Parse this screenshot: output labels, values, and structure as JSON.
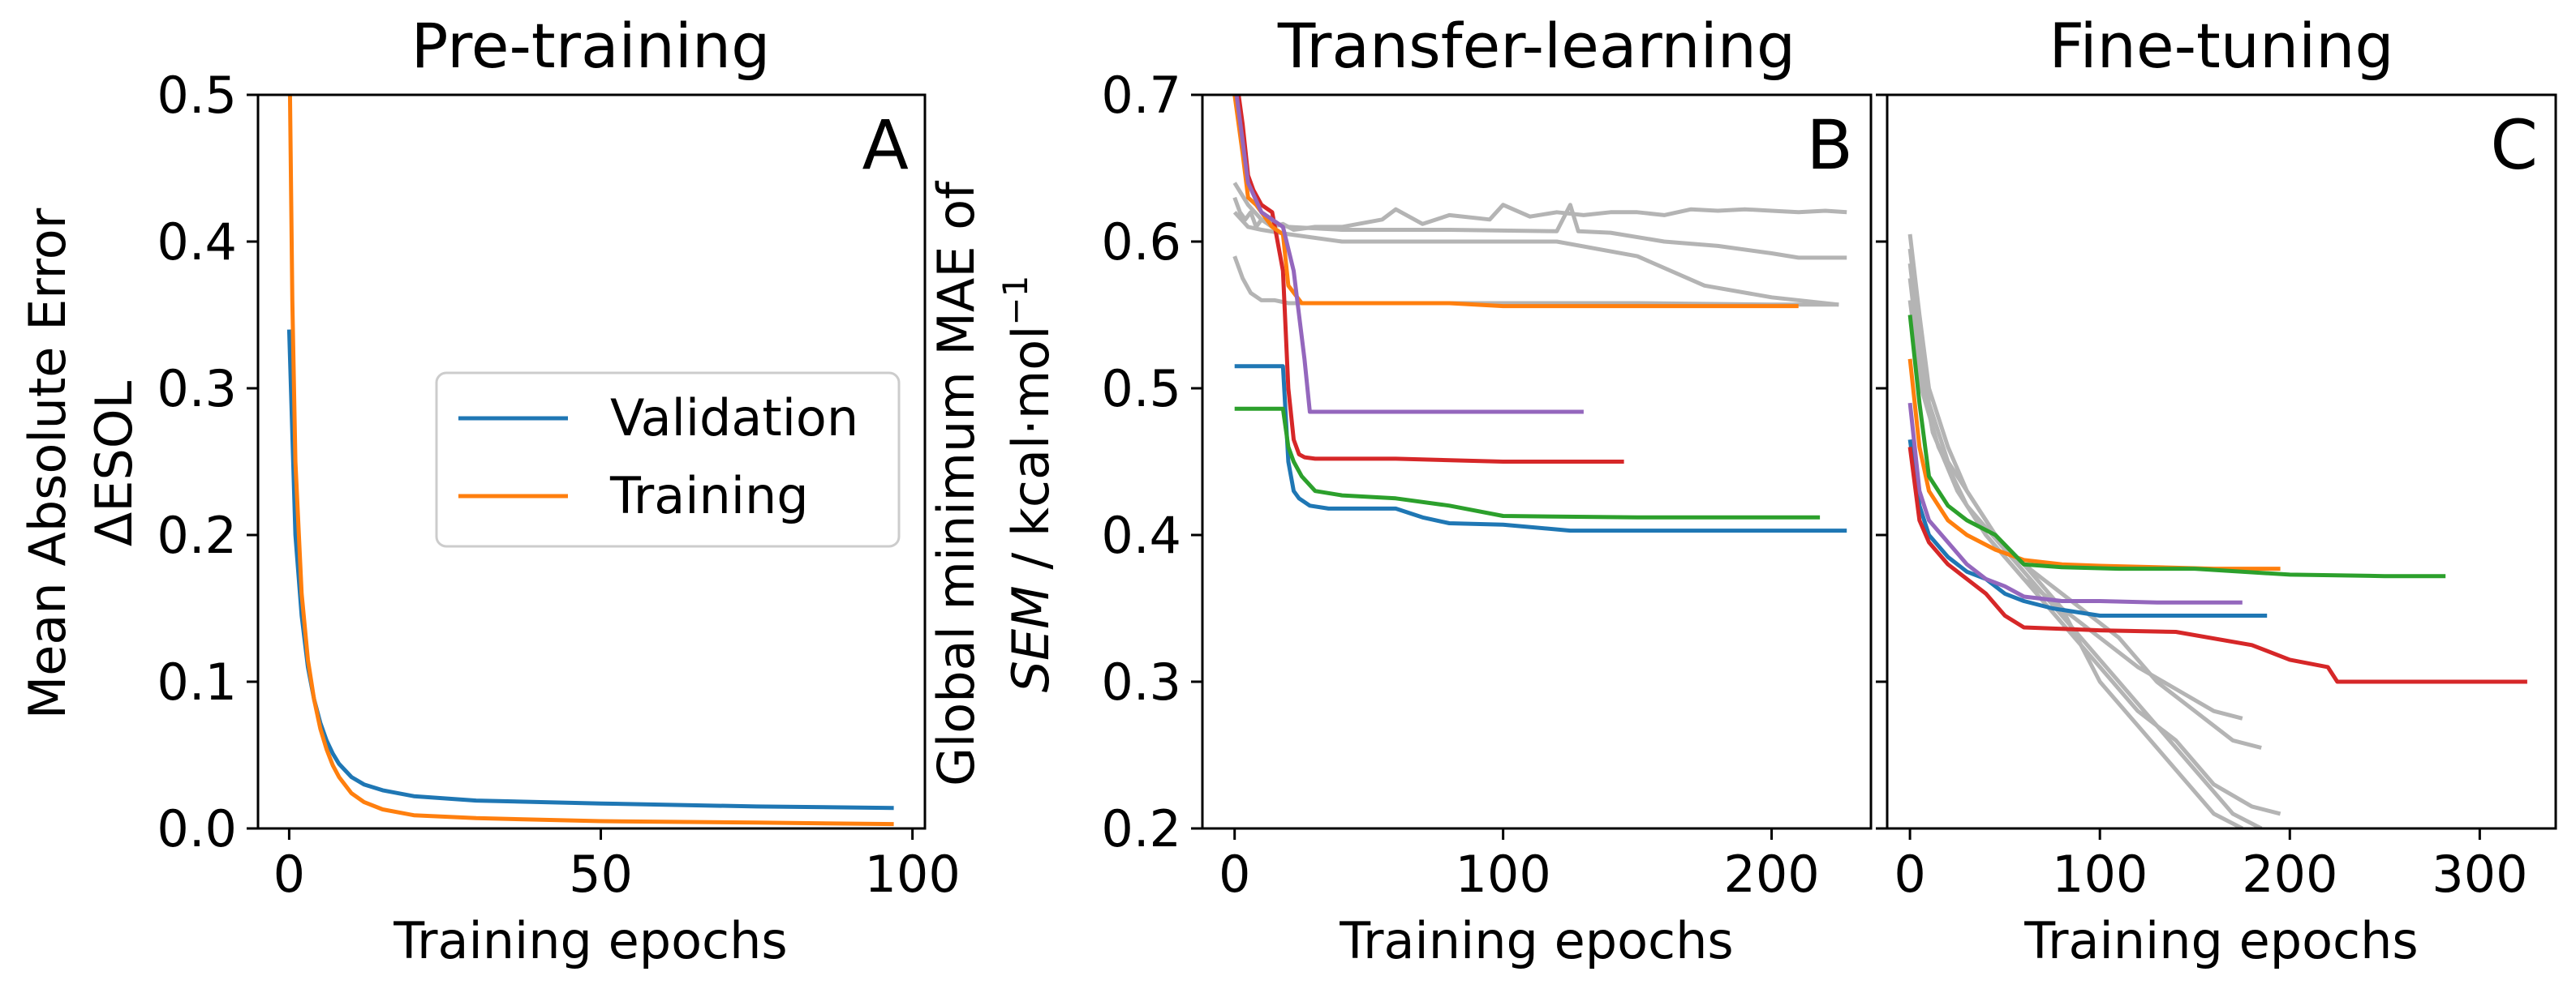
{
  "colors": {
    "C0": "#1f77b4",
    "C1": "#ff7f0e",
    "C2": "#2ca02c",
    "C3": "#d62728",
    "C4": "#9467bd",
    "grey": "#b4b4b4"
  },
  "chart_data": [
    {
      "type": "line",
      "panel_letter": "A",
      "title": "Pre-training",
      "xlabel": "Training epochs",
      "ylabel_line1": "Mean Absolute Error",
      "ylabel_line2": "ΔESOL",
      "xlim": [
        -5,
        102
      ],
      "ylim": [
        0,
        0.5
      ],
      "xticks": [
        0,
        50,
        100
      ],
      "yticks": [
        0.0,
        0.1,
        0.2,
        0.3,
        0.4,
        0.5
      ],
      "ytick_labels": [
        "0.0",
        "0.1",
        "0.2",
        "0.3",
        "0.4",
        "0.5"
      ],
      "legend": {
        "position": "center-right",
        "entries": [
          "Validation",
          "Training"
        ]
      },
      "series": [
        {
          "name": "Validation",
          "color": "C0",
          "x": [
            0,
            1,
            2,
            3,
            4,
            5,
            6,
            7,
            8,
            10,
            12,
            15,
            20,
            30,
            50,
            75,
            97
          ],
          "y": [
            0.34,
            0.2,
            0.145,
            0.11,
            0.088,
            0.072,
            0.06,
            0.051,
            0.044,
            0.035,
            0.03,
            0.026,
            0.022,
            0.019,
            0.017,
            0.015,
            0.014
          ]
        },
        {
          "name": "Training",
          "color": "C1",
          "x": [
            0,
            0.5,
            1,
            2,
            3,
            4,
            5,
            6,
            7,
            8,
            10,
            12,
            15,
            20,
            30,
            50,
            75,
            97
          ],
          "y": [
            0.55,
            0.36,
            0.25,
            0.16,
            0.115,
            0.088,
            0.068,
            0.054,
            0.043,
            0.035,
            0.024,
            0.018,
            0.013,
            0.009,
            0.007,
            0.005,
            0.004,
            0.003
          ]
        }
      ]
    },
    {
      "type": "line",
      "panel_letter": "B",
      "title": "Transfer-learning",
      "xlabel": "Training epochs",
      "ylabel_line1": "Global minimum MAE of",
      "ylabel_sem": "SEM",
      "ylabel_rest": " / kcal·mol",
      "ylabel_sup": "−1",
      "xlim": [
        -12,
        237
      ],
      "ylim": [
        0.2,
        0.7
      ],
      "xticks": [
        0,
        100,
        200
      ],
      "yticks": [
        0.2,
        0.3,
        0.4,
        0.5,
        0.6,
        0.7
      ],
      "ytick_labels": [
        "0.2",
        "0.3",
        "0.4",
        "0.5",
        "0.6",
        "0.7"
      ],
      "series": [
        {
          "color": "grey",
          "x": [
            0,
            2,
            4,
            6,
            8,
            10,
            14,
            18,
            22,
            30,
            40,
            55,
            60,
            70,
            80,
            95,
            100,
            110,
            120,
            130,
            140,
            150,
            160,
            170,
            180,
            190,
            200,
            210,
            220,
            228
          ],
          "y": [
            0.63,
            0.62,
            0.615,
            0.62,
            0.61,
            0.615,
            0.61,
            0.612,
            0.608,
            0.61,
            0.61,
            0.615,
            0.622,
            0.612,
            0.618,
            0.615,
            0.625,
            0.617,
            0.62,
            0.618,
            0.62,
            0.62,
            0.618,
            0.622,
            0.621,
            0.622,
            0.621,
            0.62,
            0.621,
            0.62
          ]
        },
        {
          "color": "grey",
          "x": [
            0,
            5,
            10,
            20,
            40,
            80,
            120,
            125,
            128,
            140,
            160,
            180,
            200,
            210,
            228
          ],
          "y": [
            0.64,
            0.625,
            0.615,
            0.61,
            0.608,
            0.608,
            0.607,
            0.625,
            0.607,
            0.606,
            0.6,
            0.597,
            0.592,
            0.589,
            0.589
          ]
        },
        {
          "color": "grey",
          "x": [
            0,
            5,
            10,
            20,
            40,
            80,
            120,
            150,
            175,
            200,
            225
          ],
          "y": [
            0.62,
            0.61,
            0.608,
            0.605,
            0.6,
            0.6,
            0.6,
            0.59,
            0.57,
            0.562,
            0.557
          ]
        },
        {
          "color": "grey",
          "x": [
            0,
            3,
            6,
            10,
            15,
            20,
            40,
            100,
            150,
            200,
            225
          ],
          "y": [
            0.59,
            0.575,
            0.565,
            0.56,
            0.56,
            0.558,
            0.558,
            0.558,
            0.558,
            0.557,
            0.557
          ]
        },
        {
          "color": "C0",
          "x": [
            0,
            18,
            20,
            22,
            24,
            28,
            35,
            60,
            70,
            80,
            100,
            125,
            150,
            200,
            228
          ],
          "y": [
            0.515,
            0.515,
            0.45,
            0.43,
            0.425,
            0.42,
            0.418,
            0.418,
            0.412,
            0.408,
            0.407,
            0.403,
            0.403,
            0.403,
            0.403
          ]
        },
        {
          "color": "C2",
          "x": [
            0,
            18,
            20,
            22,
            25,
            30,
            40,
            60,
            80,
            100,
            150,
            200,
            218
          ],
          "y": [
            0.486,
            0.486,
            0.46,
            0.45,
            0.44,
            0.43,
            0.427,
            0.425,
            0.42,
            0.413,
            0.412,
            0.412,
            0.412
          ]
        },
        {
          "color": "C3",
          "x": [
            0,
            3,
            5,
            7,
            10,
            14,
            18,
            20,
            22,
            24,
            26,
            30,
            60,
            100,
            145
          ],
          "y": [
            0.72,
            0.68,
            0.645,
            0.635,
            0.625,
            0.62,
            0.58,
            0.5,
            0.465,
            0.455,
            0.453,
            0.452,
            0.452,
            0.45,
            0.45
          ]
        },
        {
          "color": "C1",
          "x": [
            0,
            3,
            5,
            8,
            10,
            14,
            18,
            20,
            25,
            40,
            80,
            100,
            150,
            200,
            210
          ],
          "y": [
            0.7,
            0.66,
            0.63,
            0.625,
            0.62,
            0.61,
            0.605,
            0.57,
            0.558,
            0.558,
            0.558,
            0.556,
            0.556,
            0.556,
            0.556
          ]
        },
        {
          "color": "C4",
          "x": [
            0,
            5,
            10,
            14,
            18,
            22,
            24,
            26,
            28,
            40,
            80,
            130
          ],
          "y": [
            0.71,
            0.64,
            0.62,
            0.615,
            0.61,
            0.58,
            0.55,
            0.52,
            0.484,
            0.484,
            0.484,
            0.484
          ]
        }
      ]
    },
    {
      "type": "line",
      "panel_letter": "C",
      "title": "Fine-tuning",
      "xlabel": "Training epochs",
      "xlim": [
        -12,
        340
      ],
      "ylim": [
        0.2,
        0.7
      ],
      "xticks": [
        0,
        100,
        200,
        300
      ],
      "series": [
        {
          "color": "grey",
          "x": [
            0,
            5,
            10,
            20,
            30,
            45,
            60,
            80,
            100,
            120,
            140,
            160,
            175
          ],
          "y": [
            0.605,
            0.55,
            0.5,
            0.46,
            0.43,
            0.4,
            0.38,
            0.35,
            0.3,
            0.27,
            0.24,
            0.21,
            0.2
          ]
        },
        {
          "color": "grey",
          "x": [
            0,
            5,
            10,
            20,
            35,
            50,
            70,
            90,
            110,
            130,
            150,
            170,
            185
          ],
          "y": [
            0.595,
            0.54,
            0.49,
            0.45,
            0.42,
            0.39,
            0.36,
            0.33,
            0.3,
            0.27,
            0.24,
            0.21,
            0.2
          ]
        },
        {
          "color": "grey",
          "x": [
            0,
            5,
            12,
            25,
            40,
            60,
            80,
            100,
            120,
            140,
            160,
            180,
            195
          ],
          "y": [
            0.585,
            0.53,
            0.47,
            0.43,
            0.4,
            0.37,
            0.34,
            0.31,
            0.28,
            0.26,
            0.23,
            0.215,
            0.21
          ]
        },
        {
          "color": "grey",
          "x": [
            0,
            6,
            15,
            30,
            50,
            70,
            90,
            110,
            130,
            150,
            170,
            185
          ],
          "y": [
            0.56,
            0.5,
            0.46,
            0.42,
            0.39,
            0.37,
            0.35,
            0.33,
            0.3,
            0.28,
            0.26,
            0.255
          ]
        },
        {
          "color": "grey",
          "x": [
            0,
            5,
            12,
            25,
            40,
            60,
            80,
            100,
            120,
            140,
            160,
            175
          ],
          "y": [
            0.575,
            0.52,
            0.47,
            0.43,
            0.4,
            0.37,
            0.35,
            0.33,
            0.31,
            0.295,
            0.28,
            0.275
          ]
        },
        {
          "color": "C1",
          "x": [
            0,
            5,
            10,
            20,
            30,
            45,
            60,
            80,
            100,
            130,
            160,
            195
          ],
          "y": [
            0.52,
            0.46,
            0.43,
            0.41,
            0.4,
            0.39,
            0.383,
            0.38,
            0.379,
            0.378,
            0.377,
            0.377
          ]
        },
        {
          "color": "C2",
          "x": [
            0,
            5,
            10,
            20,
            30,
            45,
            60,
            80,
            110,
            150,
            200,
            250,
            282
          ],
          "y": [
            0.55,
            0.49,
            0.44,
            0.42,
            0.41,
            0.4,
            0.38,
            0.378,
            0.377,
            0.377,
            0.373,
            0.372,
            0.372
          ]
        },
        {
          "color": "C0",
          "x": [
            0,
            5,
            10,
            20,
            30,
            40,
            50,
            60,
            75,
            100,
            130,
            160,
            188
          ],
          "y": [
            0.465,
            0.42,
            0.4,
            0.385,
            0.375,
            0.37,
            0.36,
            0.355,
            0.35,
            0.345,
            0.345,
            0.345,
            0.345
          ]
        },
        {
          "color": "C4",
          "x": [
            0,
            5,
            10,
            20,
            30,
            40,
            50,
            60,
            80,
            100,
            130,
            175
          ],
          "y": [
            0.49,
            0.43,
            0.41,
            0.395,
            0.38,
            0.37,
            0.365,
            0.358,
            0.355,
            0.355,
            0.354,
            0.354
          ]
        },
        {
          "color": "C3",
          "x": [
            0,
            5,
            10,
            20,
            30,
            40,
            50,
            60,
            80,
            100,
            140,
            180,
            200,
            220,
            225,
            250,
            300,
            325
          ],
          "y": [
            0.46,
            0.41,
            0.395,
            0.38,
            0.37,
            0.36,
            0.345,
            0.337,
            0.336,
            0.335,
            0.334,
            0.325,
            0.315,
            0.31,
            0.3,
            0.3,
            0.3,
            0.3
          ]
        }
      ]
    }
  ]
}
